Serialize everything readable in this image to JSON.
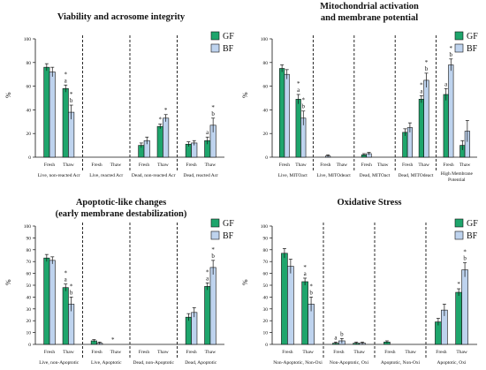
{
  "colors": {
    "GF": "#1ea56c",
    "BF": "#bed3ee",
    "axis": "#111111"
  },
  "chart_data": [
    {
      "type": "bar",
      "title": [
        "Viability and acrosome integrity"
      ],
      "ylabel": "%",
      "ylim": [
        0,
        100
      ],
      "yticks": [
        0,
        20,
        40,
        60,
        80,
        100
      ],
      "legend": [
        "GF",
        "BF"
      ],
      "x_sublabels": [
        "Fresh",
        "Thaw"
      ],
      "groups": [
        {
          "label": "Live, non-reacted Acr",
          "bars": [
            {
              "cond": "Fresh",
              "GF": 76,
              "GF_err": 3,
              "BF": 72,
              "BF_err": 4,
              "GF_ann": "",
              "BF_ann": ""
            },
            {
              "cond": "Thaw",
              "GF": 58,
              "GF_err": 3,
              "BF": 38,
              "BF_err": 6,
              "GF_ann": "* a",
              "BF_ann": "* b"
            }
          ]
        },
        {
          "label": "Live, reacted Acr",
          "bars": [
            {
              "cond": "Fresh",
              "GF": 0,
              "GF_err": 0,
              "BF": 0,
              "BF_err": 0,
              "GF_ann": "",
              "BF_ann": ""
            },
            {
              "cond": "Thaw",
              "GF": 0,
              "GF_err": 0,
              "BF": 0,
              "BF_err": 0,
              "GF_ann": "",
              "BF_ann": ""
            }
          ]
        },
        {
          "label": "Dead, non-reacted Acr",
          "bars": [
            {
              "cond": "Fresh",
              "GF": 10,
              "GF_err": 2,
              "BF": 14,
              "BF_err": 3,
              "GF_ann": "",
              "BF_ann": ""
            },
            {
              "cond": "Thaw",
              "GF": 26,
              "GF_err": 2,
              "BF": 33,
              "BF_err": 3,
              "GF_ann": "*",
              "BF_ann": "*"
            }
          ]
        },
        {
          "label": "Dead, reacted Acr",
          "bars": [
            {
              "cond": "Fresh",
              "GF": 11,
              "GF_err": 2,
              "BF": 12,
              "BF_err": 2,
              "GF_ann": "",
              "BF_ann": ""
            },
            {
              "cond": "Thaw",
              "GF": 14,
              "GF_err": 3,
              "BF": 27,
              "BF_err": 6,
              "GF_ann": "a",
              "BF_ann": "* b"
            }
          ]
        }
      ]
    },
    {
      "type": "bar",
      "title": [
        "Mitochondrial activation",
        "and membrane potential"
      ],
      "ylabel": "%",
      "ylim": [
        0,
        100
      ],
      "yticks": [
        0,
        20,
        40,
        60,
        80,
        100
      ],
      "legend": [
        "GF",
        "BF"
      ],
      "x_sublabels": [
        "Fresh",
        "Thaw"
      ],
      "extra_group_label": [
        "High Membrane",
        "Potential"
      ],
      "groups": [
        {
          "label": "Live, MITOact",
          "bars": [
            {
              "cond": "Fresh",
              "GF": 75,
              "GF_err": 3,
              "BF": 70,
              "BF_err": 4,
              "GF_ann": "",
              "BF_ann": ""
            },
            {
              "cond": "Thaw",
              "GF": 49,
              "GF_err": 4,
              "BF": 33,
              "BF_err": 6,
              "GF_ann": "* a",
              "BF_ann": "* b"
            }
          ]
        },
        {
          "label": "Live, MITOdeact",
          "bars": [
            {
              "cond": "Fresh",
              "GF": 0,
              "GF_err": 0,
              "BF": 1,
              "BF_err": 1,
              "GF_ann": "",
              "BF_ann": ""
            },
            {
              "cond": "Thaw",
              "GF": 0,
              "GF_err": 0,
              "BF": 0,
              "BF_err": 0,
              "GF_ann": "",
              "BF_ann": ""
            }
          ]
        },
        {
          "label": "Dead, MITOact",
          "bars": [
            {
              "cond": "Fresh",
              "GF": 2,
              "GF_err": 1,
              "BF": 3,
              "BF_err": 1,
              "GF_ann": "",
              "BF_ann": ""
            },
            {
              "cond": "Thaw",
              "GF": 0,
              "GF_err": 0,
              "BF": 0,
              "BF_err": 0,
              "GF_ann": "",
              "BF_ann": ""
            }
          ]
        },
        {
          "label": "Dead, MITOdeact",
          "bars": [
            {
              "cond": "Fresh",
              "GF": 21,
              "GF_err": 3,
              "BF": 25,
              "BF_err": 4,
              "GF_ann": "",
              "BF_ann": ""
            },
            {
              "cond": "Thaw",
              "GF": 49,
              "GF_err": 3,
              "BF": 65,
              "BF_err": 6,
              "GF_ann": "* a",
              "BF_ann": "* b"
            }
          ]
        },
        {
          "label": "",
          "bars": [
            {
              "cond": "Fresh",
              "GF": 53,
              "GF_err": 5,
              "BF": 78,
              "BF_err": 5,
              "GF_ann": "a",
              "BF_ann": "* b"
            },
            {
              "cond": "Thaw",
              "GF": 10,
              "GF_err": 4,
              "BF": 22,
              "BF_err": 9,
              "GF_ann": "",
              "BF_ann": ""
            }
          ]
        }
      ]
    },
    {
      "type": "bar",
      "title": [
        "Apoptotic-like changes",
        "(early membrane destabilization)"
      ],
      "ylabel": "%",
      "ylim": [
        0,
        100
      ],
      "yticks": [
        0,
        10,
        20,
        30,
        40,
        50,
        60,
        70,
        80,
        90,
        100
      ],
      "legend": [
        "GF",
        "BF"
      ],
      "x_sublabels": [
        "Fresh",
        "Thaw"
      ],
      "groups": [
        {
          "label": "Live, non-Apoptotic",
          "bars": [
            {
              "cond": "Fresh",
              "GF": 73,
              "GF_err": 3,
              "BF": 71,
              "BF_err": 3,
              "GF_ann": "",
              "BF_ann": ""
            },
            {
              "cond": "Thaw",
              "GF": 48,
              "GF_err": 3,
              "BF": 34,
              "BF_err": 6,
              "GF_ann": "* a",
              "BF_ann": "* b"
            }
          ]
        },
        {
          "label": "Live, Apoptotic",
          "bars": [
            {
              "cond": "Fresh",
              "GF": 3,
              "GF_err": 1,
              "BF": 1,
              "BF_err": 1,
              "GF_ann": "",
              "BF_ann": ""
            },
            {
              "cond": "Thaw",
              "GF": 0,
              "GF_err": 0,
              "BF": 0,
              "BF_err": 0,
              "GF_ann": "*",
              "BF_ann": ""
            }
          ]
        },
        {
          "label": "Dead, non-Apoptotic",
          "bars": [
            {
              "cond": "Fresh",
              "GF": 0,
              "GF_err": 0,
              "BF": 0,
              "BF_err": 0,
              "GF_ann": "",
              "BF_ann": ""
            },
            {
              "cond": "Thaw",
              "GF": 0,
              "GF_err": 0,
              "BF": 0,
              "BF_err": 0,
              "GF_ann": "",
              "BF_ann": ""
            }
          ]
        },
        {
          "label": "Dead, Apoptotic",
          "bars": [
            {
              "cond": "Fresh",
              "GF": 23,
              "GF_err": 3,
              "BF": 27,
              "BF_err": 4,
              "GF_ann": "",
              "BF_ann": ""
            },
            {
              "cond": "Thaw",
              "GF": 49,
              "GF_err": 3,
              "BF": 65,
              "BF_err": 6,
              "GF_ann": "* a",
              "BF_ann": "* b"
            }
          ]
        }
      ]
    },
    {
      "type": "bar",
      "title": [
        "Oxidative Stress"
      ],
      "ylabel": "%",
      "ylim": [
        0,
        100
      ],
      "yticks": [
        0,
        10,
        20,
        30,
        40,
        50,
        60,
        70,
        80,
        90,
        100
      ],
      "legend": [
        "GF",
        "BF"
      ],
      "x_sublabels": [
        "Fresh",
        "Thaw"
      ],
      "groups": [
        {
          "label": "Non-Apoptotic, Non-Oxi",
          "bars": [
            {
              "cond": "Fresh",
              "GF": 77,
              "GF_err": 4,
              "BF": 66,
              "BF_err": 6,
              "GF_ann": "",
              "BF_ann": ""
            },
            {
              "cond": "Thaw",
              "GF": 53,
              "GF_err": 3,
              "BF": 34,
              "BF_err": 6,
              "GF_ann": "* a",
              "BF_ann": "* b"
            }
          ]
        },
        {
          "label": "Non-Apoptotic, Oxi",
          "bars": [
            {
              "cond": "Fresh",
              "GF": 1,
              "GF_err": 1,
              "BF": 3,
              "BF_err": 2,
              "GF_ann": "a",
              "BF_ann": "b"
            },
            {
              "cond": "Thaw",
              "GF": 1,
              "GF_err": 1,
              "BF": 1,
              "BF_err": 1,
              "GF_ann": "",
              "BF_ann": ""
            }
          ]
        },
        {
          "label": "Apoptotic, Non-Oxi",
          "bars": [
            {
              "cond": "Fresh",
              "GF": 2,
              "GF_err": 1,
              "BF": 0,
              "BF_err": 0,
              "GF_ann": "",
              "BF_ann": ""
            },
            {
              "cond": "Thaw",
              "GF": 0,
              "GF_err": 0,
              "BF": 0,
              "BF_err": 0,
              "GF_ann": "",
              "BF_ann": ""
            }
          ]
        },
        {
          "label": "Apoptotic, Oxi",
          "bars": [
            {
              "cond": "Fresh",
              "GF": 19,
              "GF_err": 3,
              "BF": 29,
              "BF_err": 5,
              "GF_ann": "",
              "BF_ann": ""
            },
            {
              "cond": "Thaw",
              "GF": 44,
              "GF_err": 3,
              "BF": 63,
              "BF_err": 6,
              "GF_ann": "*",
              "BF_ann": "* b"
            }
          ]
        }
      ]
    }
  ]
}
